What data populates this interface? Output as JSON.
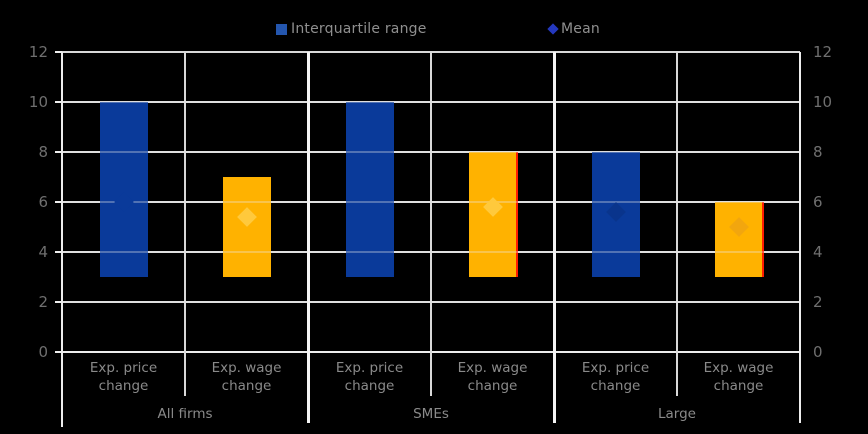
{
  "chart_data": {
    "type": "bar",
    "title": "",
    "legend_iqr": "Interquartile range",
    "legend_mean": "Mean",
    "ylim": [
      0,
      12
    ],
    "yticks": [
      12,
      10,
      8,
      6,
      4,
      2,
      0
    ],
    "dual_axis": true,
    "grid": true,
    "groups": [
      {
        "label": "All firms",
        "bars": [
          {
            "category": "Exp. price change",
            "series": "price",
            "iqr_low": 3,
            "iqr_high": 10,
            "mean": 6.0,
            "mean_color": "#0A3A9A"
          },
          {
            "category": "Exp. wage change",
            "series": "wage",
            "iqr_low": 3,
            "iqr_high": 7,
            "mean": 5.4,
            "mean_color": "#FFC93C"
          }
        ]
      },
      {
        "label": "SMEs",
        "bars": [
          {
            "category": "Exp. price change",
            "series": "price",
            "iqr_low": 3,
            "iqr_high": 10,
            "mean": 6.5,
            "mean_color": "#0A3A9A"
          },
          {
            "category": "Exp. wage change",
            "series": "wage",
            "iqr_low": 3,
            "iqr_high": 8,
            "mean": 5.8,
            "mean_color": "#FFC93C",
            "red_right_edge": true
          }
        ]
      },
      {
        "label": "Large",
        "bars": [
          {
            "category": "Exp. price change",
            "series": "price",
            "iqr_low": 3,
            "iqr_high": 8,
            "mean": 5.6,
            "mean_color": "#09348C"
          },
          {
            "category": "Exp. wage change",
            "series": "wage",
            "iqr_low": 3,
            "iqr_high": 6,
            "mean": 5.0,
            "mean_color": "#F2A60E",
            "red_right_edge": true
          }
        ]
      }
    ],
    "colors": {
      "price_bar": "#0A3A9A",
      "wage_bar": "#FFB200",
      "red_edge": "#FF1E00",
      "legend_square": "#2456AE",
      "legend_diamond": "#2438BE",
      "gridline": "#D9D9D9",
      "axis_line": "#EDEDED",
      "group_separator": "#F5F5F5",
      "background": "#000000",
      "tick_label": "#6F6F6F",
      "category_label": "#8A8A8A",
      "legend_label": "#8F8F8F"
    }
  }
}
